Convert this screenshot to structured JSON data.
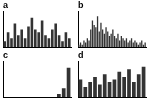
{
  "chart_data": [
    {
      "type": "bar",
      "title": "a",
      "categories": [
        null,
        null,
        null,
        null,
        null,
        null,
        null,
        null,
        null,
        null,
        null,
        null,
        null,
        null,
        null,
        null,
        null,
        null,
        null,
        null
      ],
      "values": [
        2,
        5,
        3,
        8,
        4,
        6,
        3,
        7,
        10,
        6,
        5,
        9,
        4,
        3,
        6,
        8,
        4,
        2,
        5,
        3
      ],
      "color": "#333333",
      "ylim": [
        0,
        12
      ],
      "grid": false,
      "tick_labels": false
    },
    {
      "type": "bar",
      "title": "b",
      "categories": [
        null,
        null,
        null,
        null,
        null,
        null,
        null,
        null,
        null,
        null,
        null,
        null,
        null,
        null,
        null,
        null,
        null,
        null,
        null,
        null,
        null,
        null,
        null,
        null,
        null,
        null,
        null,
        null,
        null,
        null,
        null,
        null,
        null,
        null,
        null,
        null,
        null,
        null,
        null,
        null
      ],
      "values": [
        1,
        2,
        1,
        3,
        2,
        4,
        3,
        8,
        12,
        10,
        9,
        14,
        7,
        11,
        8,
        6,
        9,
        7,
        5,
        6,
        8,
        5,
        4,
        6,
        3,
        5,
        4,
        3,
        4,
        2,
        3,
        4,
        2,
        3,
        2,
        1,
        2,
        3,
        1,
        2
      ],
      "color": "#333333",
      "ylim": [
        0,
        16
      ],
      "grid": false,
      "tick_labels": false
    },
    {
      "type": "bar",
      "title": "c",
      "categories": [
        null,
        null,
        null,
        null,
        null,
        null,
        null,
        null,
        null,
        null,
        null,
        null,
        null,
        null
      ],
      "values": [
        0,
        0,
        0,
        0,
        0,
        0,
        0,
        0,
        0,
        0,
        0,
        1,
        3,
        10
      ],
      "color": "#333333",
      "ylim": [
        0,
        12
      ],
      "grid": false,
      "tick_labels": false
    },
    {
      "type": "bar",
      "title": "d",
      "categories": [
        null,
        null,
        null,
        null,
        null,
        null,
        null,
        null,
        null,
        null,
        null,
        null,
        null,
        null
      ],
      "values": [
        7,
        4,
        6,
        8,
        5,
        9,
        6,
        7,
        10,
        8,
        11,
        6,
        9,
        12
      ],
      "color": "#333333",
      "ylim": [
        0,
        14
      ],
      "grid": false,
      "tick_labels": false
    }
  ]
}
